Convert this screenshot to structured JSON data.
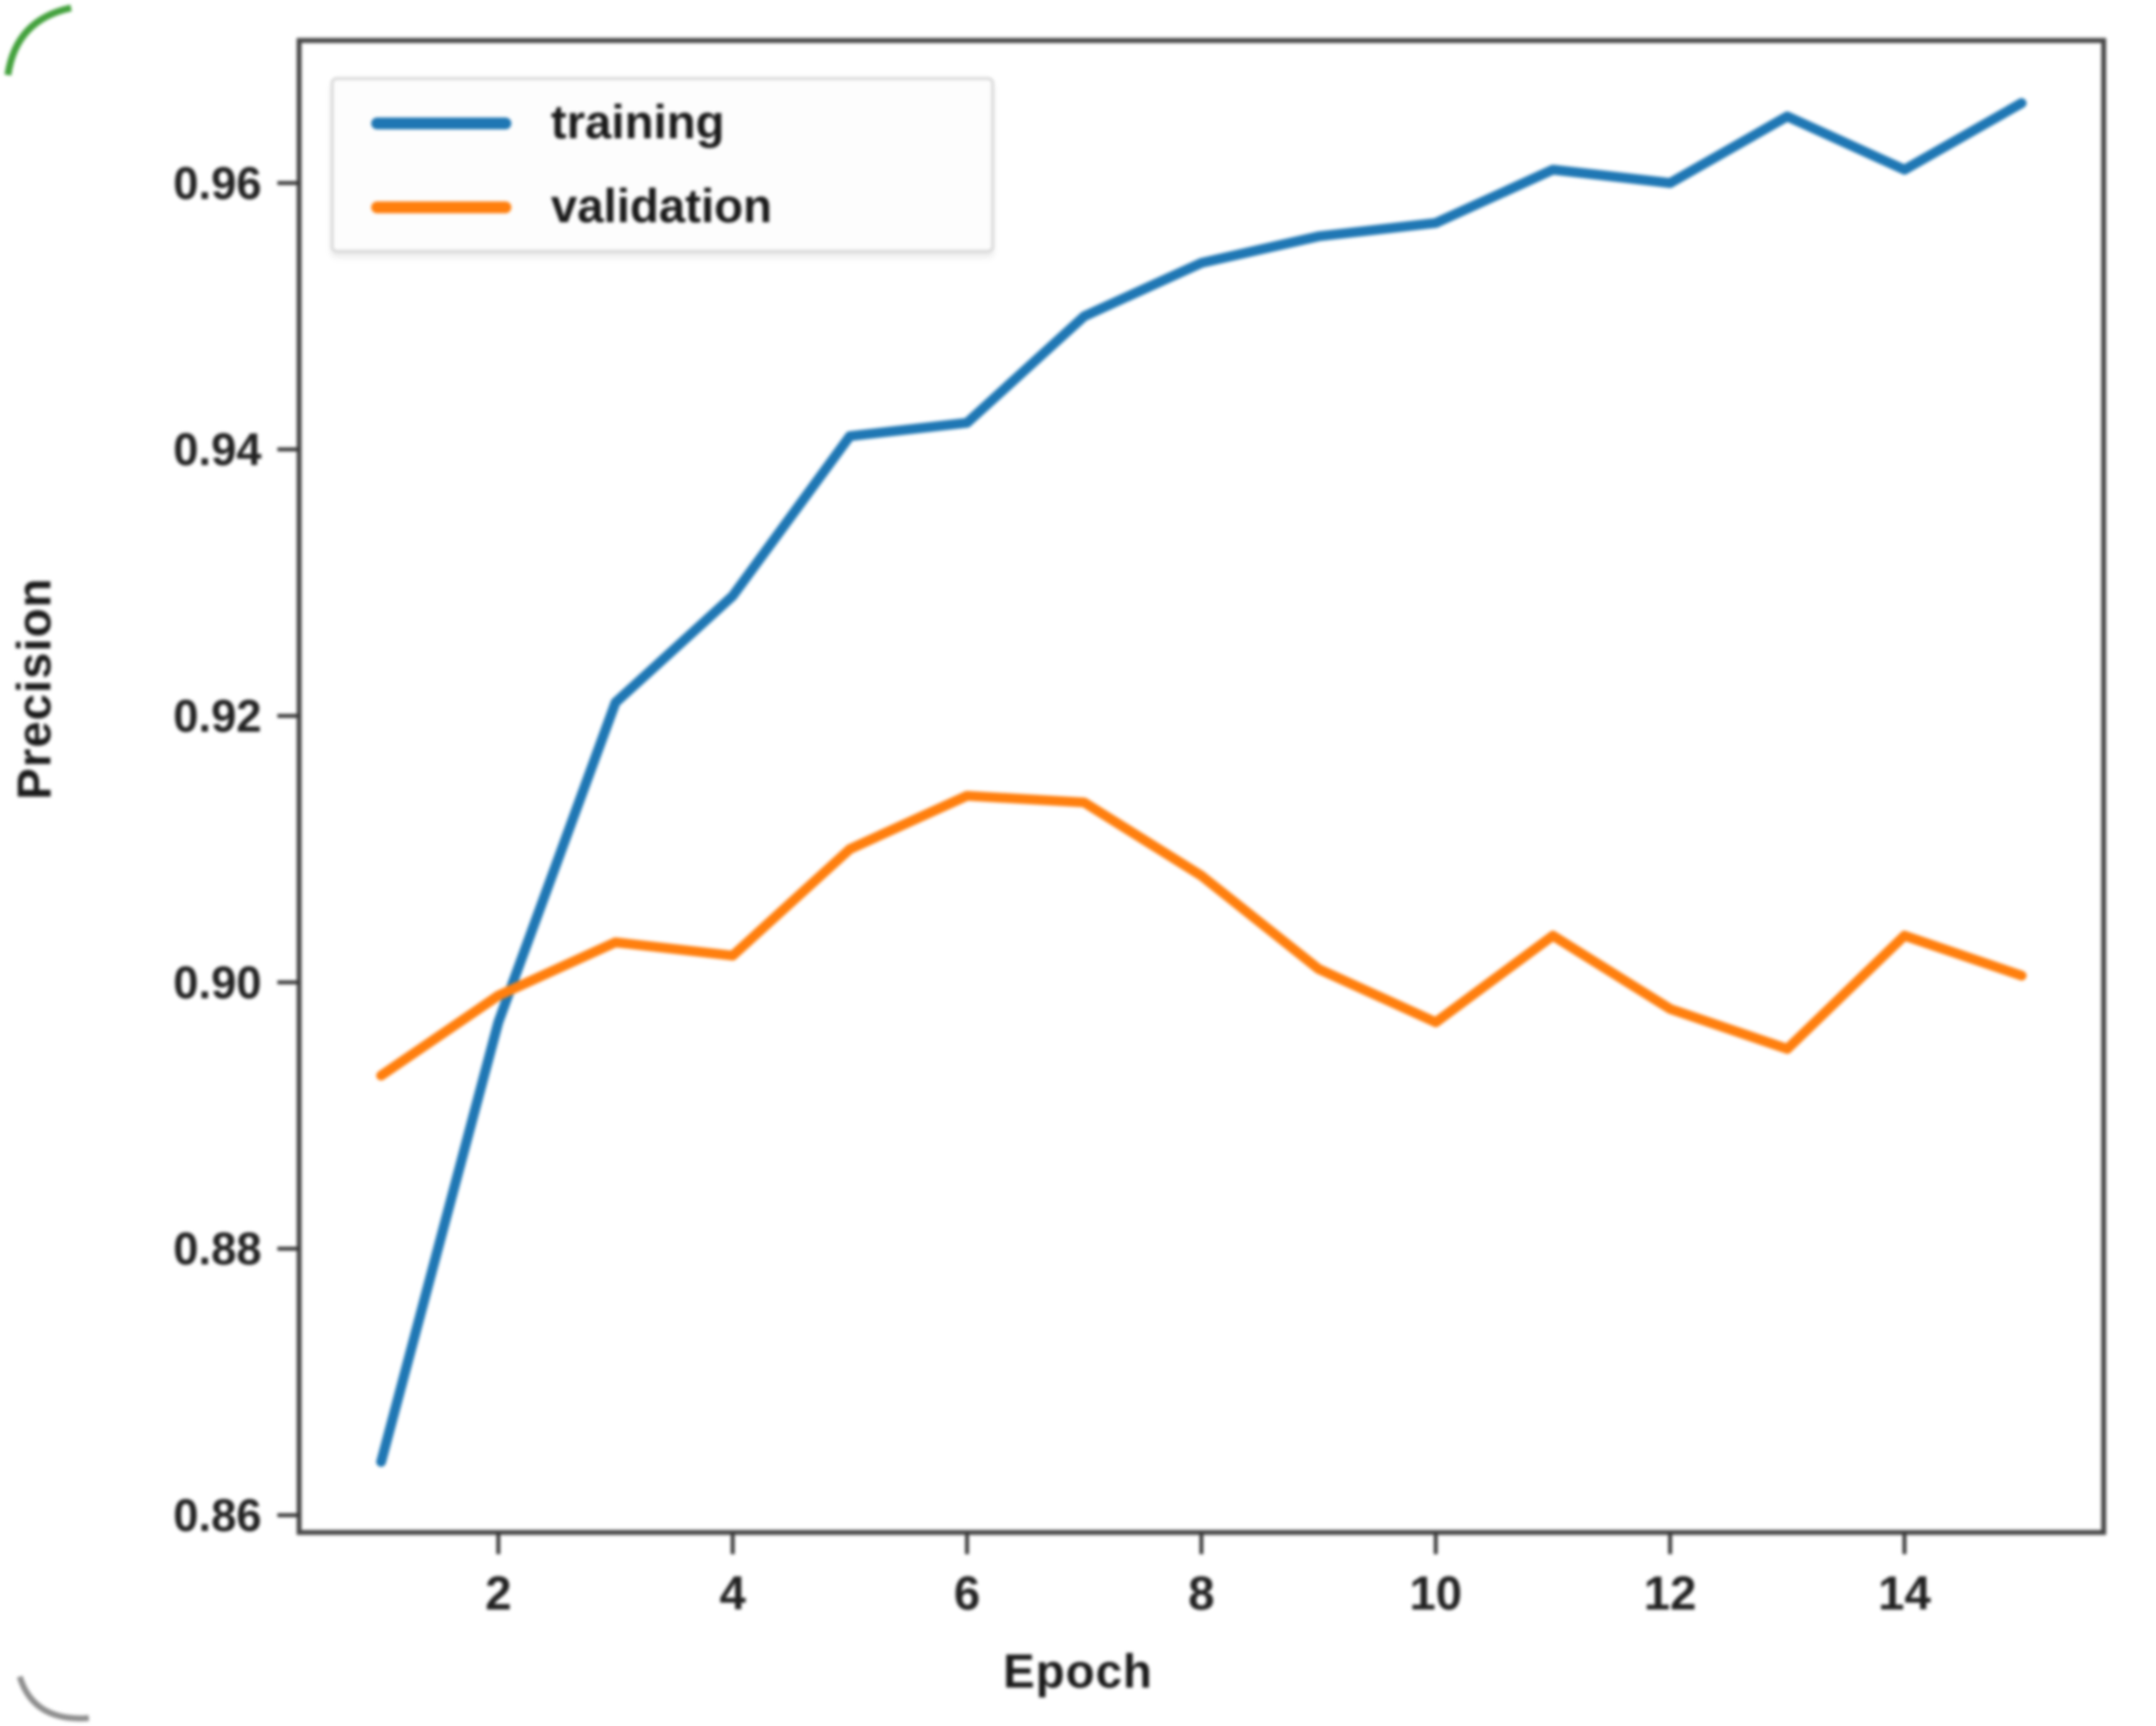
{
  "figure": {
    "ylabel": "Precision",
    "xlabel": "Epoch",
    "background_color": "#ffffff",
    "spine_color": "#474747",
    "tick_color": "#3a3a3a"
  },
  "legend": {
    "position": "upper left",
    "items": [
      {
        "label": "training",
        "color": "#1f77b4"
      },
      {
        "label": "validation",
        "color": "#ff7f0e"
      }
    ]
  },
  "chart_data": {
    "type": "line",
    "title": "",
    "xlabel": "Epoch",
    "ylabel": "Precision",
    "x": [
      1,
      2,
      3,
      4,
      5,
      6,
      7,
      8,
      9,
      10,
      11,
      12,
      13,
      14,
      15
    ],
    "series": [
      {
        "name": "training",
        "color": "#1f77b4",
        "values": [
          0.864,
          0.897,
          0.921,
          0.929,
          0.941,
          0.942,
          0.95,
          0.954,
          0.956,
          0.957,
          0.961,
          0.96,
          0.965,
          0.961,
          0.966
        ]
      },
      {
        "name": "validation",
        "color": "#ff7f0e",
        "values": [
          0.893,
          0.899,
          0.903,
          0.902,
          0.91,
          0.914,
          0.9135,
          0.908,
          0.901,
          0.897,
          0.9035,
          0.898,
          0.895,
          0.9035,
          0.9005
        ]
      }
    ],
    "xticks": [
      2,
      4,
      6,
      8,
      10,
      12,
      14
    ],
    "yticks": [
      0.86,
      0.88,
      0.9,
      0.92,
      0.94,
      0.96
    ],
    "ytick_labels": [
      "0.86",
      "0.88",
      "0.90",
      "0.92",
      "0.94",
      "0.96"
    ],
    "xlim": [
      0.3,
      15.7
    ],
    "ylim": [
      0.8587,
      0.9707
    ],
    "grid": false,
    "legend_position": "upper left",
    "line_width": 10
  }
}
